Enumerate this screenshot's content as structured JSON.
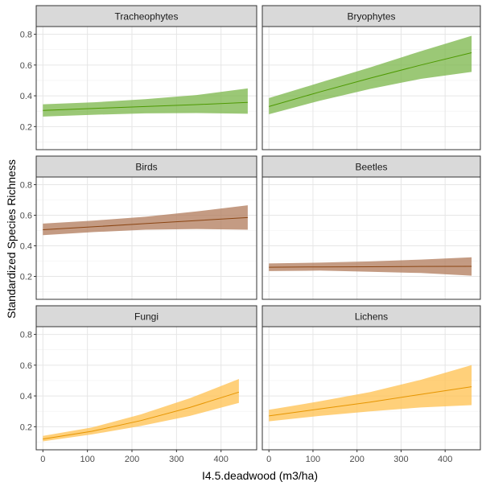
{
  "chart_data": {
    "type": "line",
    "facet_layout": "3 rows x 2 columns",
    "xlabel": "I4.5.deadwood (m3/ha)",
    "ylabel": "Standardized Species Richness",
    "xlim": [
      -15,
      480
    ],
    "ylim": [
      0.05,
      0.85
    ],
    "x_ticks": [
      0,
      100,
      200,
      300,
      400
    ],
    "y_ticks": [
      0.2,
      0.4,
      0.6,
      0.8
    ],
    "y_tick_labels": [
      "0.2",
      "0.4",
      "0.6",
      "0.8"
    ],
    "grid": true,
    "panels": [
      {
        "name": "Tracheophytes",
        "color": "#4d9900",
        "fill": "#7ab648",
        "x": [
          0,
          115,
          230,
          345,
          460
        ],
        "y": [
          0.305,
          0.318,
          0.33,
          0.343,
          0.357
        ],
        "lower": [
          0.265,
          0.277,
          0.286,
          0.288,
          0.283
        ],
        "upper": [
          0.345,
          0.358,
          0.378,
          0.405,
          0.448
        ]
      },
      {
        "name": "Bryophytes",
        "color": "#4d9900",
        "fill": "#7ab648",
        "x": [
          0,
          115,
          230,
          345,
          460
        ],
        "y": [
          0.33,
          0.425,
          0.515,
          0.6,
          0.68
        ],
        "lower": [
          0.28,
          0.368,
          0.445,
          0.51,
          0.555
        ],
        "upper": [
          0.385,
          0.485,
          0.585,
          0.69,
          0.79
        ]
      },
      {
        "name": "Birds",
        "color": "#8b4513",
        "fill": "#b07a5a",
        "x": [
          0,
          115,
          230,
          345,
          460
        ],
        "y": [
          0.505,
          0.525,
          0.545,
          0.565,
          0.585
        ],
        "lower": [
          0.47,
          0.49,
          0.505,
          0.51,
          0.505
        ],
        "upper": [
          0.545,
          0.565,
          0.59,
          0.625,
          0.665
        ]
      },
      {
        "name": "Beetles",
        "color": "#8b4513",
        "fill": "#b07a5a",
        "x": [
          0,
          115,
          230,
          345,
          460
        ],
        "y": [
          0.26,
          0.262,
          0.263,
          0.265,
          0.266
        ],
        "lower": [
          0.235,
          0.238,
          0.23,
          0.222,
          0.205
        ],
        "upper": [
          0.285,
          0.29,
          0.298,
          0.31,
          0.325
        ]
      },
      {
        "name": "Fungi",
        "color": "#e69500",
        "fill": "#ffc04d",
        "x": [
          0,
          110,
          220,
          330,
          440
        ],
        "y": [
          0.12,
          0.17,
          0.24,
          0.325,
          0.425
        ],
        "lower": [
          0.105,
          0.15,
          0.205,
          0.27,
          0.355
        ],
        "upper": [
          0.14,
          0.195,
          0.28,
          0.385,
          0.51
        ]
      },
      {
        "name": "Lichens",
        "color": "#e69500",
        "fill": "#ffc04d",
        "x": [
          0,
          115,
          230,
          345,
          460
        ],
        "y": [
          0.27,
          0.315,
          0.36,
          0.41,
          0.46
        ],
        "lower": [
          0.235,
          0.27,
          0.3,
          0.325,
          0.34
        ],
        "upper": [
          0.31,
          0.365,
          0.425,
          0.505,
          0.6
        ]
      }
    ]
  }
}
